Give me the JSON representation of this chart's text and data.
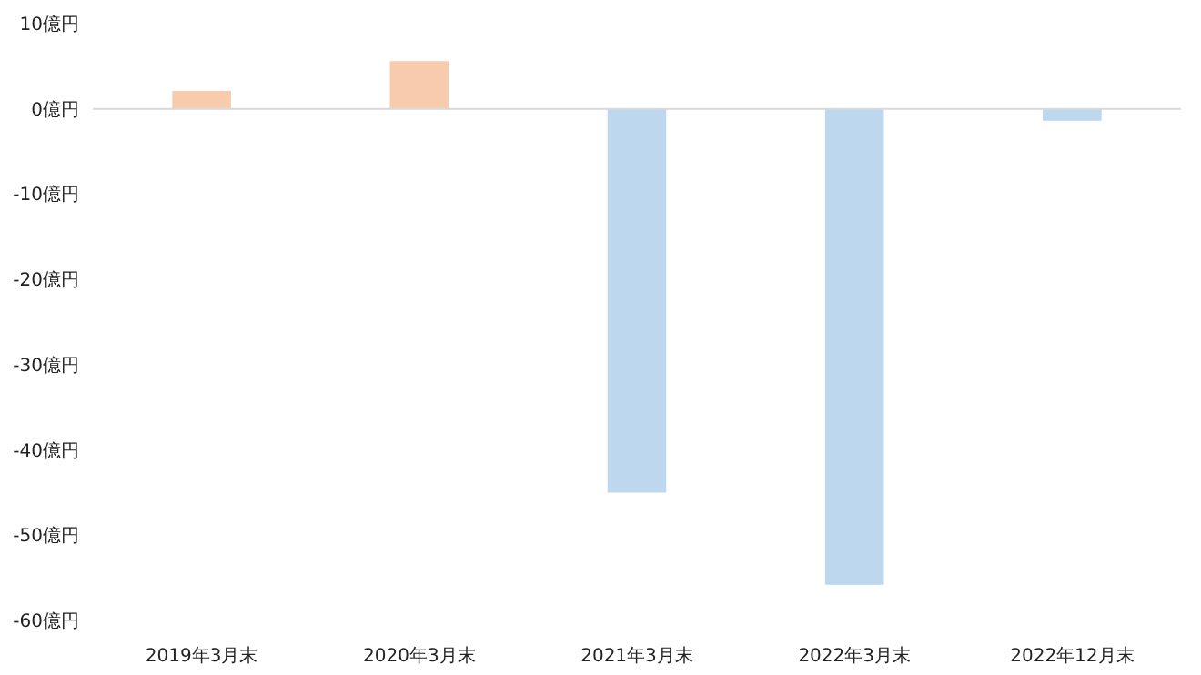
{
  "chart_data": {
    "type": "bar",
    "categories": [
      "2019年3月末",
      "2020年3月末",
      "2021年3月末",
      "2022年3月末",
      "2022年12月末"
    ],
    "values": [
      2.1,
      5.6,
      -45.0,
      -55.8,
      -1.4
    ],
    "colors": [
      "#f8cbad",
      "#f8cbad",
      "#bdd7ee",
      "#bdd7ee",
      "#bdd7ee"
    ],
    "ylim": [
      -60,
      10
    ],
    "yticks": [
      {
        "value": 10,
        "label": "10億円"
      },
      {
        "value": 0,
        "label": "0億円"
      },
      {
        "value": -10,
        "label": "-10億円"
      },
      {
        "value": -20,
        "label": "-20億円"
      },
      {
        "value": -30,
        "label": "-30億円"
      },
      {
        "value": -40,
        "label": "-40億円"
      },
      {
        "value": -50,
        "label": "-50億円"
      },
      {
        "value": -60,
        "label": "-60億円"
      }
    ],
    "ref_lines": [
      {
        "axis": "y",
        "value": 0,
        "color": "#d9d9d9"
      }
    ],
    "grid": false
  }
}
